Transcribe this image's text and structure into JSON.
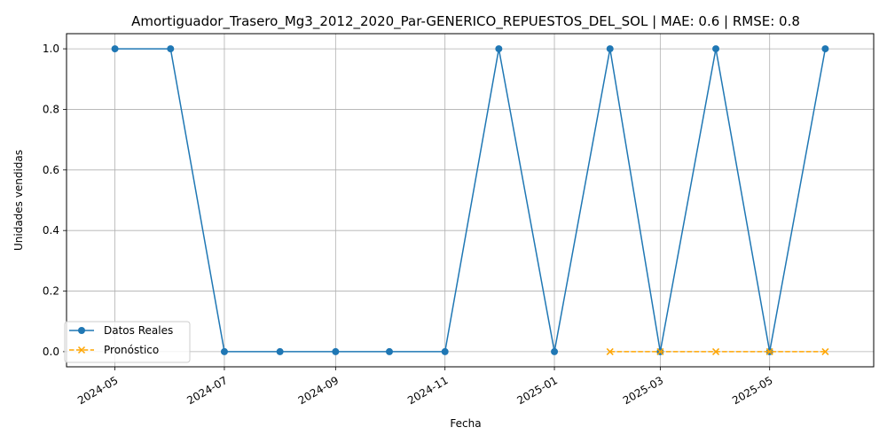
{
  "chart_data": {
    "type": "line",
    "title": "Amortiguador_Trasero_Mg3_2012_2020_Par-GENERICO_REPUESTOS_DEL_SOL | MAE: 0.6 | RMSE: 0.8",
    "xlabel": "Fecha",
    "ylabel": "Unidades vendidas",
    "xlim": [
      "2024-04-04",
      "2025-06-28"
    ],
    "ylim": [
      -0.05,
      1.05
    ],
    "grid": true,
    "legend_position": "lower-left",
    "x_ticks": [
      "2024-05",
      "2024-07",
      "2024-09",
      "2024-11",
      "2025-01",
      "2025-03",
      "2025-05"
    ],
    "x_tick_dates": [
      "2024-05-01",
      "2024-07-01",
      "2024-09-01",
      "2024-11-01",
      "2025-01-01",
      "2025-03-01",
      "2025-05-01"
    ],
    "y_ticks": [
      0.0,
      0.2,
      0.4,
      0.6,
      0.8,
      1.0
    ],
    "y_tick_labels": [
      "0.0",
      "0.2",
      "0.4",
      "0.6",
      "0.8",
      "1.0"
    ],
    "series": [
      {
        "name": "Datos Reales",
        "color": "#1f77b4",
        "marker": "circle",
        "linestyle": "solid",
        "x": [
          "2024-05-01",
          "2024-06-01",
          "2024-07-01",
          "2024-08-01",
          "2024-09-01",
          "2024-10-01",
          "2024-11-01",
          "2024-12-01",
          "2025-01-01",
          "2025-02-01",
          "2025-03-01",
          "2025-04-01",
          "2025-05-01",
          "2025-06-01"
        ],
        "y": [
          1,
          1,
          0,
          0,
          0,
          0,
          0,
          1,
          0,
          1,
          0,
          1,
          0,
          1
        ]
      },
      {
        "name": "Pronóstico",
        "color": "#ffa500",
        "marker": "x",
        "linestyle": "dashed",
        "x": [
          "2025-02-01",
          "2025-03-01",
          "2025-04-01",
          "2025-05-01",
          "2025-06-01"
        ],
        "y": [
          0,
          0,
          0,
          0,
          0
        ]
      }
    ]
  }
}
